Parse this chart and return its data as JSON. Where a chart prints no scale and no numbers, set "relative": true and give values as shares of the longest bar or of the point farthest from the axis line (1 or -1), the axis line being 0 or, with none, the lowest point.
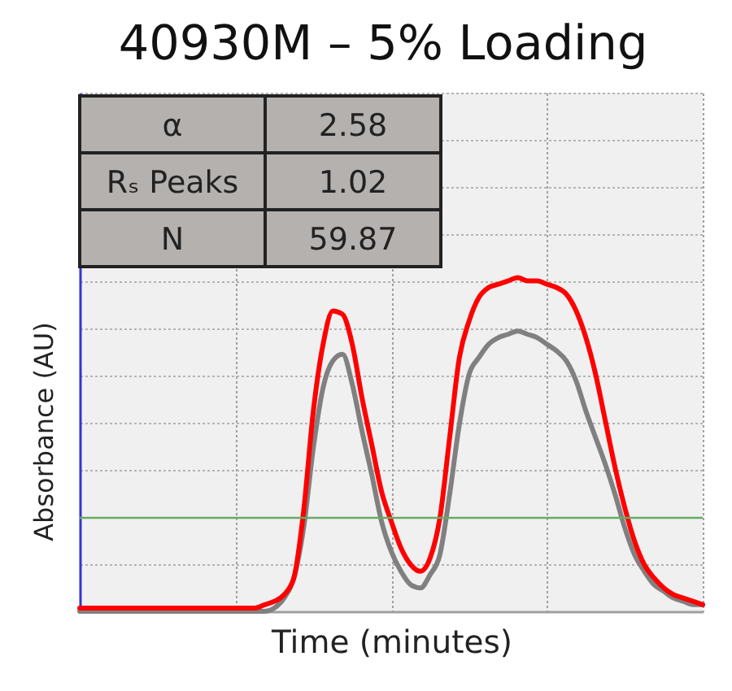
{
  "chart_data": {
    "type": "line",
    "title": "40930M – 5% Loading",
    "xlabel": "Time (minutes)",
    "ylabel": "Absorbance (AU)",
    "categories": [
      null,
      null,
      null,
      null,
      null,
      null,
      null,
      null,
      null,
      null,
      null,
      null,
      null,
      null,
      null,
      null,
      null,
      null,
      null,
      null,
      null,
      null,
      null,
      null,
      null,
      null,
      null,
      null,
      null,
      null,
      null,
      null,
      null,
      null,
      null,
      null,
      null,
      null,
      null,
      null,
      null,
      null,
      null,
      null,
      null,
      null,
      null,
      null,
      null,
      null,
      null,
      null,
      null,
      null,
      null,
      null,
      null,
      null,
      null,
      null,
      null,
      null,
      null,
      null,
      null
    ],
    "relative": true,
    "series": [
      {
        "color": "#808080",
        "values": [
          0,
          0,
          0,
          0,
          0,
          0,
          0,
          0,
          0,
          0,
          0,
          0,
          0,
          0,
          0,
          0,
          0,
          0,
          0,
          0,
          0.01,
          0.04,
          0.1,
          0.25,
          0.49,
          0.67,
          0.75,
          0.77,
          0.68,
          0.54,
          0.41,
          0.27,
          0.18,
          0.12,
          0.08,
          0.07,
          0.11,
          0.17,
          0.35,
          0.56,
          0.71,
          0.76,
          0.8,
          0.82,
          0.83,
          0.84,
          0.83,
          0.82,
          0.8,
          0.78,
          0.75,
          0.69,
          0.6,
          0.52,
          0.44,
          0.35,
          0.25,
          0.17,
          0.12,
          0.08,
          0.06,
          0.04,
          0.03,
          0.02,
          0.02
        ]
      },
      {
        "color": "#ff0000",
        "values": [
          0.01,
          0.01,
          0.01,
          0.01,
          0.01,
          0.01,
          0.01,
          0.01,
          0.01,
          0.01,
          0.01,
          0.01,
          0.01,
          0.01,
          0.01,
          0.01,
          0.01,
          0.01,
          0.01,
          0.02,
          0.03,
          0.05,
          0.1,
          0.3,
          0.6,
          0.8,
          0.9,
          0.89,
          0.8,
          0.64,
          0.5,
          0.36,
          0.27,
          0.19,
          0.14,
          0.12,
          0.16,
          0.28,
          0.52,
          0.76,
          0.87,
          0.94,
          0.97,
          0.98,
          0.99,
          1.0,
          0.99,
          0.99,
          0.98,
          0.97,
          0.95,
          0.9,
          0.82,
          0.71,
          0.57,
          0.43,
          0.31,
          0.21,
          0.14,
          0.1,
          0.07,
          0.05,
          0.04,
          0.03,
          0.02
        ]
      }
    ],
    "ref_lines": [
      {
        "axis": "y",
        "value": 0.28,
        "color": "#66aa66"
      }
    ],
    "annotations": [
      "α",
      "2.58",
      "Rₛ Peaks",
      "1.02",
      "N",
      "59.87"
    ],
    "grid": true,
    "tick_labels": false,
    "line_style": "solid"
  }
}
